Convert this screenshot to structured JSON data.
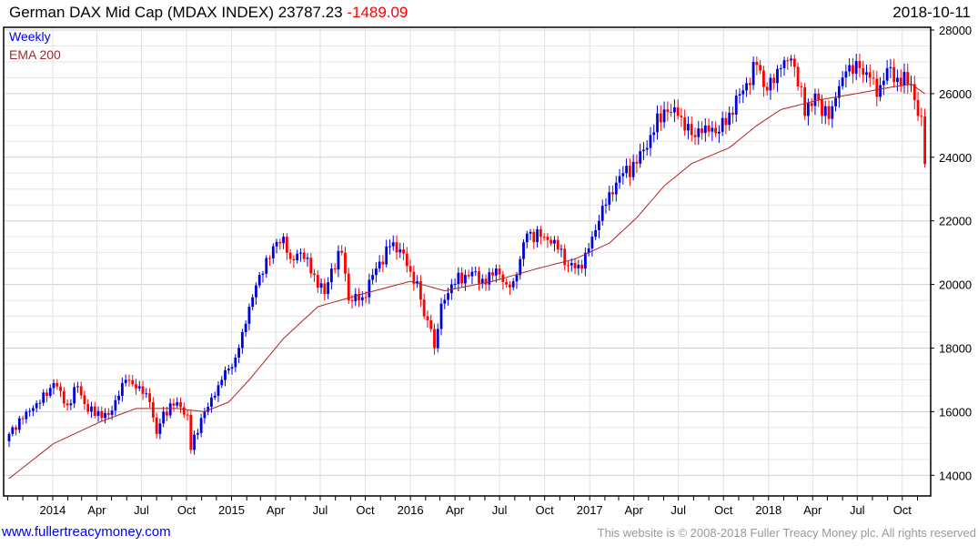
{
  "header": {
    "name": "German DAX Mid Cap",
    "ticker": "(MDAX INDEX)",
    "last": "23787.23",
    "change": "-1489.09",
    "date": "2018-10-11"
  },
  "legend": {
    "period": "Weekly",
    "ma": "EMA 200"
  },
  "footer": {
    "link": "www.fullertreacymoney.com",
    "copyright": "This website is © 2008-2018 Fuller Treacy Money plc. All rights reserved"
  },
  "colors": {
    "up": "#0000dd",
    "down": "#ff0000",
    "ema": "#b22222",
    "grid": "#dddddd"
  },
  "chart_data": {
    "type": "candlestick",
    "title": "German DAX Mid Cap (MDAX INDEX)",
    "start_date": "2013-10-04",
    "interval": "weekly",
    "ylim": [
      13700,
      28200
    ],
    "yticks": [
      14000,
      16000,
      18000,
      20000,
      22000,
      24000,
      26000,
      28000
    ],
    "xticks": [
      {
        "label": "2014",
        "date": "2014-01-01"
      },
      {
        "label": "Apr",
        "date": "2014-04-01"
      },
      {
        "label": "Jul",
        "date": "2014-07-01"
      },
      {
        "label": "Oct",
        "date": "2014-10-01"
      },
      {
        "label": "2015",
        "date": "2015-01-01"
      },
      {
        "label": "Apr",
        "date": "2015-04-01"
      },
      {
        "label": "Jul",
        "date": "2015-07-01"
      },
      {
        "label": "Oct",
        "date": "2015-10-01"
      },
      {
        "label": "2016",
        "date": "2016-01-01"
      },
      {
        "label": "Apr",
        "date": "2016-04-01"
      },
      {
        "label": "Jul",
        "date": "2016-07-01"
      },
      {
        "label": "Oct",
        "date": "2016-10-01"
      },
      {
        "label": "2017",
        "date": "2017-01-01"
      },
      {
        "label": "Apr",
        "date": "2017-04-01"
      },
      {
        "label": "Jul",
        "date": "2017-07-01"
      },
      {
        "label": "Oct",
        "date": "2017-10-01"
      },
      {
        "label": "2018",
        "date": "2018-01-01"
      },
      {
        "label": "Apr",
        "date": "2018-04-01"
      },
      {
        "label": "Jul",
        "date": "2018-07-01"
      },
      {
        "label": "Oct",
        "date": "2018-10-01"
      }
    ],
    "close_keypoints": [
      [
        0,
        15300
      ],
      [
        5,
        16000
      ],
      [
        11,
        16500
      ],
      [
        13,
        16900
      ],
      [
        17,
        16200
      ],
      [
        20,
        16800
      ],
      [
        23,
        16000
      ],
      [
        29,
        15900
      ],
      [
        32,
        16500
      ],
      [
        34,
        17000
      ],
      [
        38,
        16800
      ],
      [
        41,
        16300
      ],
      [
        43,
        15300
      ],
      [
        45,
        16000
      ],
      [
        49,
        16300
      ],
      [
        52,
        15900
      ],
      [
        53,
        14800
      ],
      [
        56,
        15800
      ],
      [
        60,
        16500
      ],
      [
        62,
        17000
      ],
      [
        66,
        17700
      ],
      [
        68,
        18500
      ],
      [
        70,
        19300
      ],
      [
        73,
        20300
      ],
      [
        77,
        21200
      ],
      [
        80,
        21500
      ],
      [
        82,
        20800
      ],
      [
        85,
        21000
      ],
      [
        89,
        20300
      ],
      [
        92,
        19700
      ],
      [
        94,
        20500
      ],
      [
        97,
        21000
      ],
      [
        99,
        19500
      ],
      [
        103,
        19600
      ],
      [
        107,
        20500
      ],
      [
        111,
        21200
      ],
      [
        114,
        21100
      ],
      [
        117,
        20400
      ],
      [
        119,
        20100
      ],
      [
        121,
        19000
      ],
      [
        123,
        18600
      ],
      [
        124,
        18000
      ],
      [
        126,
        19400
      ],
      [
        129,
        20000
      ],
      [
        133,
        20300
      ],
      [
        135,
        20400
      ],
      [
        139,
        20000
      ],
      [
        142,
        20500
      ],
      [
        145,
        20000
      ],
      [
        147,
        20100
      ],
      [
        149,
        20800
      ],
      [
        151,
        21600
      ],
      [
        155,
        21500
      ],
      [
        159,
        21400
      ],
      [
        163,
        20600
      ],
      [
        167,
        20500
      ],
      [
        170,
        21500
      ],
      [
        172,
        22000
      ],
      [
        175,
        22900
      ],
      [
        179,
        23500
      ],
      [
        183,
        23800
      ],
      [
        187,
        24700
      ],
      [
        191,
        25500
      ],
      [
        195,
        25300
      ],
      [
        199,
        24700
      ],
      [
        203,
        25000
      ],
      [
        207,
        24800
      ],
      [
        210,
        25400
      ],
      [
        214,
        26100
      ],
      [
        218,
        26900
      ],
      [
        221,
        26100
      ],
      [
        225,
        26800
      ],
      [
        228,
        27100
      ],
      [
        231,
        26200
      ],
      [
        232,
        25300
      ],
      [
        235,
        26000
      ],
      [
        237,
        25300
      ],
      [
        240,
        25600
      ],
      [
        244,
        26700
      ],
      [
        248,
        26800
      ],
      [
        251,
        26500
      ],
      [
        253,
        25900
      ],
      [
        256,
        26800
      ],
      [
        259,
        26500
      ],
      [
        263,
        26300
      ],
      [
        265,
        25300
      ],
      [
        266,
        25277
      ],
      [
        267,
        23787
      ]
    ],
    "ema_keypoints": [
      [
        0,
        13900
      ],
      [
        13,
        15000
      ],
      [
        27,
        15700
      ],
      [
        37,
        16100
      ],
      [
        49,
        16100
      ],
      [
        57,
        16000
      ],
      [
        64,
        16300
      ],
      [
        70,
        17000
      ],
      [
        80,
        18300
      ],
      [
        90,
        19300
      ],
      [
        103,
        19700
      ],
      [
        117,
        20100
      ],
      [
        127,
        19800
      ],
      [
        141,
        20100
      ],
      [
        154,
        20500
      ],
      [
        165,
        20800
      ],
      [
        175,
        21300
      ],
      [
        183,
        22100
      ],
      [
        191,
        23100
      ],
      [
        199,
        23800
      ],
      [
        210,
        24300
      ],
      [
        218,
        25000
      ],
      [
        225,
        25500
      ],
      [
        236,
        25800
      ],
      [
        247,
        26000
      ],
      [
        257,
        26200
      ],
      [
        263,
        26300
      ],
      [
        267,
        26000
      ]
    ]
  }
}
